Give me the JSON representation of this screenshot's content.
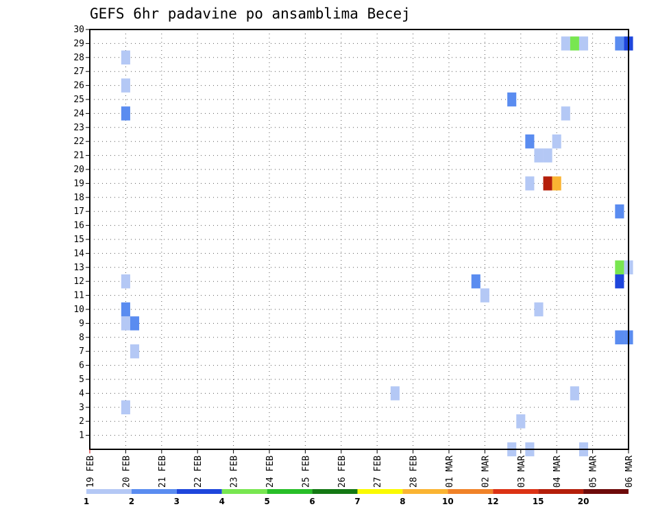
{
  "chart_data": {
    "type": "heatmap",
    "title": "GEFS 6hr padavine po ansamblima Becej",
    "x_tick_labels": [
      "19 FEB",
      "20 FEB",
      "21 FEB",
      "22 FEB",
      "23 FEB",
      "24 FEB",
      "25 FEB",
      "26 FEB",
      "27 FEB",
      "28 FEB",
      "01 MAR",
      "02 MAR",
      "03 MAR",
      "04 MAR",
      "05 MAR",
      "06 MAR"
    ],
    "y_tick_labels": [
      "1",
      "2",
      "3",
      "4",
      "5",
      "6",
      "7",
      "8",
      "9",
      "10",
      "11",
      "12",
      "13",
      "14",
      "15",
      "16",
      "17",
      "18",
      "19",
      "20",
      "21",
      "22",
      "23",
      "24",
      "25",
      "26",
      "27",
      "28",
      "29",
      "30"
    ],
    "xlim": [
      0,
      15
    ],
    "ylim": [
      0,
      30
    ],
    "grid": true,
    "colorbar": {
      "position": "bottom",
      "tick_labels": [
        "1",
        "2",
        "3",
        "4",
        "5",
        "6",
        "7",
        "8",
        "10",
        "12",
        "15",
        "20"
      ],
      "colors": [
        "#b4c8f5",
        "#5a8cf0",
        "#1e46dc",
        "#78e650",
        "#28be28",
        "#147814",
        "#fafa00",
        "#fab432",
        "#f08228",
        "#dc3214",
        "#b41e0a",
        "#6e0a0a"
      ]
    },
    "cells": [
      {
        "day": 1.0,
        "member": 3,
        "value": 1.5
      },
      {
        "day": 1.25,
        "member": 7,
        "value": 1.5
      },
      {
        "day": 1.0,
        "member": 9,
        "value": 1.5
      },
      {
        "day": 1.25,
        "member": 9,
        "value": 2.5
      },
      {
        "day": 1.0,
        "member": 10,
        "value": 2.5
      },
      {
        "day": 1.0,
        "member": 12,
        "value": 1.5
      },
      {
        "day": 1.0,
        "member": 24,
        "value": 2.5
      },
      {
        "day": 1.0,
        "member": 26,
        "value": 1.5
      },
      {
        "day": 1.0,
        "member": 28,
        "value": 1.5
      },
      {
        "day": 8.5,
        "member": 4,
        "value": 1.5
      },
      {
        "day": 10.75,
        "member": 12,
        "value": 2.5
      },
      {
        "day": 11.0,
        "member": 11,
        "value": 1.5
      },
      {
        "day": 11.75,
        "member": 0,
        "value": 1.5
      },
      {
        "day": 11.75,
        "member": 25,
        "value": 2.5
      },
      {
        "day": 12.0,
        "member": 2,
        "value": 1.5
      },
      {
        "day": 12.25,
        "member": 0,
        "value": 1.5
      },
      {
        "day": 12.25,
        "member": 19,
        "value": 1.5
      },
      {
        "day": 12.25,
        "member": 22,
        "value": 2.5
      },
      {
        "day": 12.5,
        "member": 10,
        "value": 1.5
      },
      {
        "day": 12.5,
        "member": 21,
        "value": 1.5
      },
      {
        "day": 12.75,
        "member": 21,
        "value": 1.5
      },
      {
        "day": 12.75,
        "member": 19,
        "value": 16.0
      },
      {
        "day": 13.0,
        "member": 19,
        "value": 9.0
      },
      {
        "day": 13.0,
        "member": 22,
        "value": 1.5
      },
      {
        "day": 13.25,
        "member": 24,
        "value": 1.5
      },
      {
        "day": 13.25,
        "member": 29,
        "value": 1.5
      },
      {
        "day": 13.5,
        "member": 29,
        "value": 4.5
      },
      {
        "day": 13.5,
        "member": 4,
        "value": 1.5
      },
      {
        "day": 13.75,
        "member": 29,
        "value": 1.5
      },
      {
        "day": 13.75,
        "member": 0,
        "value": 1.5
      },
      {
        "day": 14.75,
        "member": 29,
        "value": 2.5
      },
      {
        "day": 15.0,
        "member": 29,
        "value": 3.5
      },
      {
        "day": 14.75,
        "member": 17,
        "value": 2.5
      },
      {
        "day": 14.75,
        "member": 13,
        "value": 4.5
      },
      {
        "day": 15.0,
        "member": 13,
        "value": 1.5
      },
      {
        "day": 14.75,
        "member": 12,
        "value": 3.5
      },
      {
        "day": 14.75,
        "member": 8,
        "value": 2.5
      },
      {
        "day": 15.0,
        "member": 8,
        "value": 2.5
      }
    ]
  }
}
